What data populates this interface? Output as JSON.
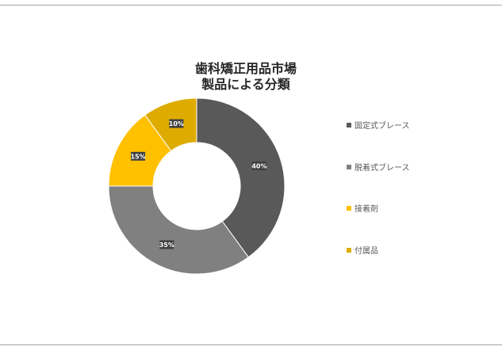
{
  "chart_data": {
    "type": "pie",
    "variant": "donut",
    "title_lines": [
      "歯科矯正用品市場",
      "製品による分類"
    ],
    "categories": [
      "固定式ブレース",
      "脱着式ブレース",
      "接着剤",
      "付属品"
    ],
    "values": [
      40,
      35,
      15,
      10
    ],
    "data_labels": [
      "40%",
      "35%",
      "15%",
      "10%"
    ],
    "colors": [
      "#595959",
      "#808080",
      "#ffc000",
      "#deac00"
    ],
    "legend_position": "right"
  }
}
